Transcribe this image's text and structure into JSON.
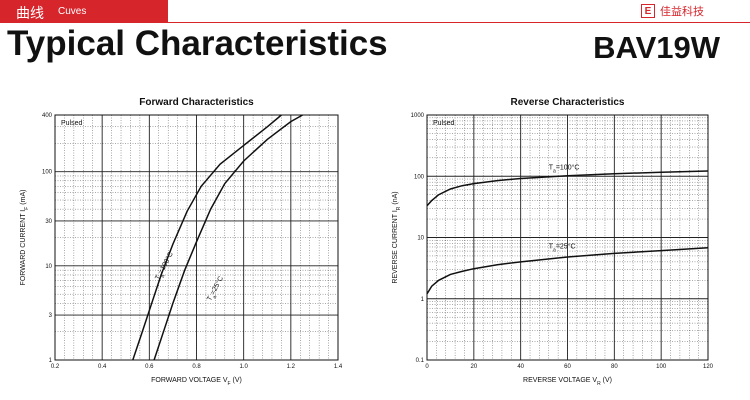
{
  "header": {
    "section_title": "曲线",
    "section_subtitle": "Cuves",
    "brand_logo": "E",
    "brand_name": "佳益科技",
    "brand_color": "#d6262c"
  },
  "page": {
    "title": "Typical Characteristics",
    "part_number": "BAV19W"
  },
  "chart_data": [
    {
      "type": "line",
      "title": "Forward Characteristics",
      "note": "Pulsed",
      "xlabel": "FORWARD VOLTAGE",
      "xlabel_symbol": "V",
      "xlabel_sub": "F",
      "xlabel_unit": "(V)",
      "ylabel": "FORWARD CURRENT",
      "ylabel_symbol": "I",
      "ylabel_sub": "F",
      "ylabel_unit": "(mA)",
      "xlim": [
        0.2,
        1.4
      ],
      "ylim": [
        1,
        400
      ],
      "yscale": "log",
      "grid": true,
      "x_ticks": [
        0.2,
        0.4,
        0.6,
        0.8,
        1.0,
        1.2,
        1.4
      ],
      "x_tick_labels": [
        "0.2",
        "0.4",
        "0.6",
        "0.8",
        "1.0",
        "1.2",
        "1.4"
      ],
      "y_ticks": [
        1,
        3,
        10,
        30,
        100,
        400
      ],
      "y_tick_labels": [
        "1",
        "3",
        "10",
        "30",
        "100",
        "400"
      ],
      "series": [
        {
          "name": "Ta=100°C",
          "label_parts": [
            "T",
            "a",
            "=100",
            "°C"
          ],
          "x": [
            0.53,
            0.57,
            0.61,
            0.65,
            0.7,
            0.76,
            0.82,
            0.9,
            1.0,
            1.1,
            1.16
          ],
          "y": [
            1,
            2,
            4,
            8,
            17,
            38,
            70,
            120,
            190,
            300,
            400
          ]
        },
        {
          "name": "Ta=25°C",
          "label_parts": [
            "T",
            "a",
            "=25",
            "°C"
          ],
          "x": [
            0.62,
            0.66,
            0.7,
            0.75,
            0.8,
            0.86,
            0.92,
            1.0,
            1.1,
            1.2,
            1.25
          ],
          "y": [
            1,
            2,
            4,
            9,
            18,
            40,
            75,
            130,
            220,
            340,
            400
          ]
        }
      ]
    },
    {
      "type": "line",
      "title": "Reverse Characteristics",
      "note": "Pulsed",
      "xlabel": "REVERSE VOLTAGE",
      "xlabel_symbol": "V",
      "xlabel_sub": "R",
      "xlabel_unit": "(V)",
      "ylabel": "REVERSE CURRENT",
      "ylabel_symbol": "I",
      "ylabel_sub": "R",
      "ylabel_unit": "(nA)",
      "xlim": [
        0,
        120
      ],
      "ylim": [
        0.1,
        1000
      ],
      "yscale": "log",
      "grid": true,
      "x_ticks": [
        0,
        20,
        40,
        60,
        80,
        100,
        120
      ],
      "x_tick_labels": [
        "0",
        "20",
        "40",
        "60",
        "80",
        "100",
        "120"
      ],
      "y_ticks": [
        0.1,
        1,
        10,
        100,
        1000
      ],
      "y_tick_labels": [
        "0.1",
        "1",
        "10",
        "100",
        "1000"
      ],
      "series": [
        {
          "name": "Ta=100°C",
          "label_parts": [
            "T",
            "a",
            "=100",
            "°C"
          ],
          "x": [
            0,
            2,
            5,
            10,
            15,
            20,
            30,
            40,
            60,
            80,
            100,
            120
          ],
          "y": [
            33,
            40,
            50,
            62,
            70,
            76,
            85,
            92,
            102,
            110,
            116,
            122
          ]
        },
        {
          "name": "Ta=25°C",
          "label_parts": [
            "T",
            "a",
            "=25",
            "°C"
          ],
          "x": [
            0,
            2,
            5,
            10,
            15,
            20,
            30,
            40,
            60,
            80,
            100,
            120
          ],
          "y": [
            1.2,
            1.6,
            2.0,
            2.5,
            2.8,
            3.1,
            3.6,
            4.0,
            4.8,
            5.5,
            6.1,
            6.8
          ]
        }
      ]
    }
  ]
}
